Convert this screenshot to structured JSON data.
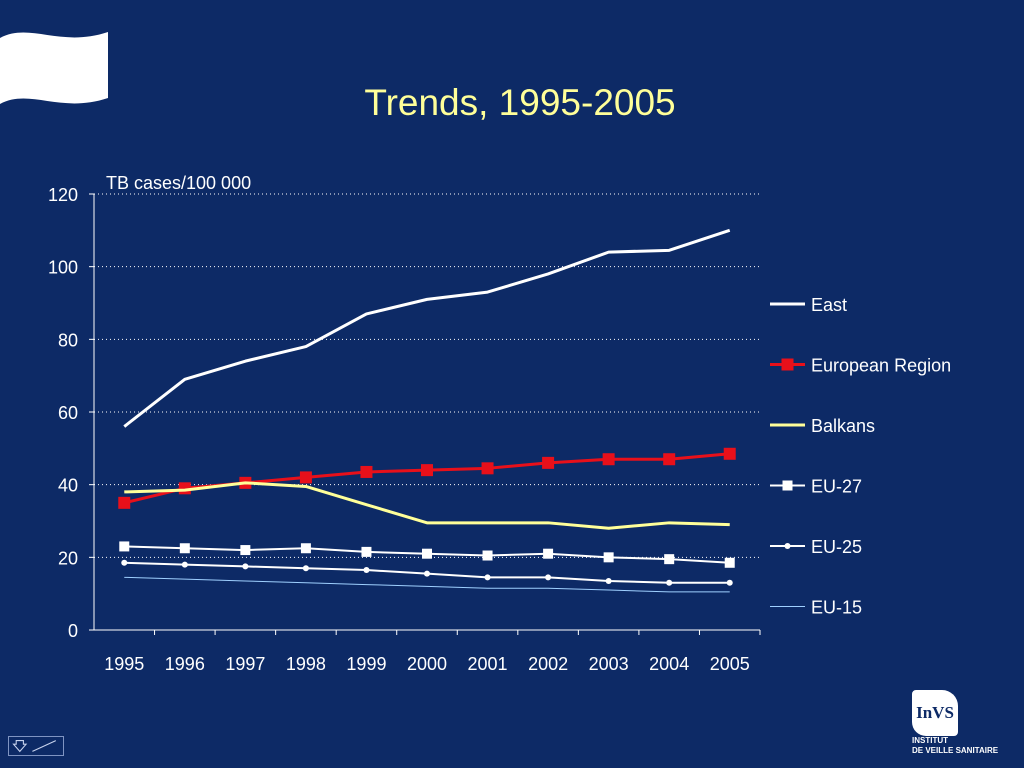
{
  "slide": {
    "title": "Trends, 1995-2005"
  },
  "logo": {
    "mark": "InVS",
    "line1": "INSTITUT",
    "line2": "DE VEILLE SANITAIRE"
  },
  "colors": {
    "background": "#0d2a66",
    "title": "#ffff99",
    "grid": "#ffffff"
  },
  "chart_data": {
    "type": "line",
    "title": "Trends, 1995-2005",
    "ylabel": "TB cases/100 000",
    "xlabel": "",
    "ylim": [
      0,
      120
    ],
    "yticks": [
      0,
      20,
      40,
      60,
      80,
      100,
      120
    ],
    "grid": "dotted horizontal",
    "legend_position": "right",
    "categories": [
      "1995",
      "1996",
      "1997",
      "1998",
      "1999",
      "2000",
      "2001",
      "2002",
      "2003",
      "2004",
      "2005"
    ],
    "series": [
      {
        "name": "East",
        "color": "#ffffff",
        "marker": "none",
        "values": [
          56,
          69,
          74,
          78,
          87,
          91,
          93,
          98,
          104,
          104.5,
          110
        ]
      },
      {
        "name": "European Region",
        "color": "#e8101a",
        "marker": "square",
        "values": [
          35,
          39,
          40.5,
          42,
          43.5,
          44,
          44.5,
          46,
          47,
          47,
          48.5
        ]
      },
      {
        "name": "Balkans",
        "color": "#ffff99",
        "marker": "none",
        "values": [
          38,
          38.5,
          40.5,
          39.5,
          34.5,
          29.5,
          29.5,
          29.5,
          28,
          29.5,
          29
        ]
      },
      {
        "name": "EU-27",
        "color": "#ffffff",
        "marker": "square-small",
        "values": [
          23,
          22.5,
          22,
          22.5,
          21.5,
          21,
          20.5,
          21,
          20,
          19.5,
          18.5
        ]
      },
      {
        "name": "EU-25",
        "color": "#ffffff",
        "marker": "dot",
        "values": [
          18.5,
          18,
          17.5,
          17,
          16.5,
          15.5,
          14.5,
          14.5,
          13.5,
          13,
          13
        ]
      },
      {
        "name": "EU-15",
        "color": "#9fd0ff",
        "marker": "none",
        "values": [
          14.5,
          14,
          13.5,
          13,
          12.5,
          12,
          11.5,
          11.5,
          11,
          10.5,
          10.5
        ]
      }
    ]
  }
}
